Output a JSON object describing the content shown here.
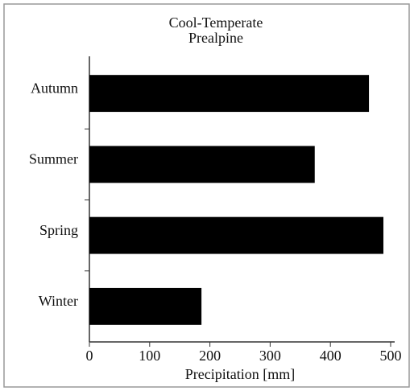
{
  "chart_data": {
    "type": "barh",
    "title": "Cool-Temperate",
    "subtitle": "Prealpine",
    "categories": [
      "Autumn",
      "Summer",
      "Spring",
      "Winter"
    ],
    "values": [
      464,
      374,
      488,
      186
    ],
    "color": "#000000",
    "xlim": [
      0,
      500
    ],
    "xticks": [
      0,
      100,
      200,
      300,
      400,
      500
    ],
    "xlabel": "Precipitation [mm]",
    "grid": false
  }
}
